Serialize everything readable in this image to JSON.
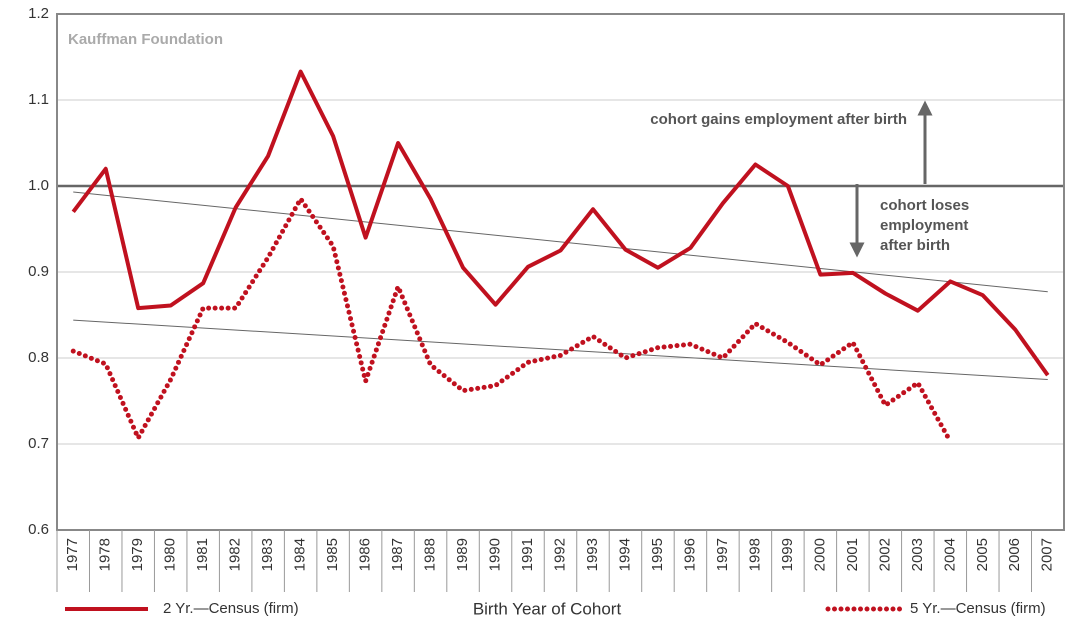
{
  "chart_data": {
    "type": "line",
    "annotations": {
      "source": "Kauffman Foundation",
      "gains": "cohort gains employment after birth",
      "loses": [
        "cohort  loses",
        "employment",
        "after birth"
      ]
    },
    "x_label": "Birth Year of Cohort",
    "categories": [
      "1977",
      "1978",
      "1979",
      "1980",
      "1981",
      "1982",
      "1983",
      "1984",
      "1985",
      "1986",
      "1987",
      "1988",
      "1989",
      "1990",
      "1991",
      "1992",
      "1993",
      "1994",
      "1995",
      "1996",
      "1997",
      "1998",
      "1999",
      "2000",
      "2001",
      "2002",
      "2003",
      "2004",
      "2005",
      "2006",
      "2007"
    ],
    "series": [
      {
        "name": "2 Yr.—Census (firm)",
        "color": "#c0111f",
        "style": "solid",
        "values": [
          0.97,
          1.02,
          0.858,
          0.861,
          0.887,
          0.975,
          1.035,
          1.133,
          1.058,
          0.94,
          1.05,
          0.985,
          0.905,
          0.862,
          0.906,
          0.925,
          0.973,
          0.926,
          0.905,
          0.928,
          0.98,
          1.025,
          1.0,
          0.897,
          0.899,
          0.875,
          0.855,
          0.889,
          0.873,
          0.833,
          0.78
        ]
      },
      {
        "name": "5 Yr.—Census (firm)",
        "color": "#c0111f",
        "style": "dotted",
        "values": [
          0.808,
          0.793,
          0.707,
          0.775,
          0.858,
          0.858,
          0.917,
          0.985,
          0.93,
          0.773,
          0.883,
          0.792,
          0.762,
          0.768,
          0.795,
          0.803,
          0.825,
          0.8,
          0.812,
          0.816,
          0.8,
          0.84,
          0.818,
          0.792,
          0.818,
          0.745,
          0.771,
          0.703,
          null,
          null,
          null
        ]
      }
    ],
    "trendlines": [
      {
        "values": [
          0.993,
          0.877
        ]
      },
      {
        "values": [
          0.844,
          0.775
        ]
      }
    ],
    "ylim": [
      0.6,
      1.2
    ],
    "yticks": [
      0.6,
      0.7,
      0.8,
      0.9,
      {
        "value": 1,
        "label": "1.0"
      },
      1.1,
      1.2
    ],
    "reference_line": 1,
    "grid": true
  }
}
